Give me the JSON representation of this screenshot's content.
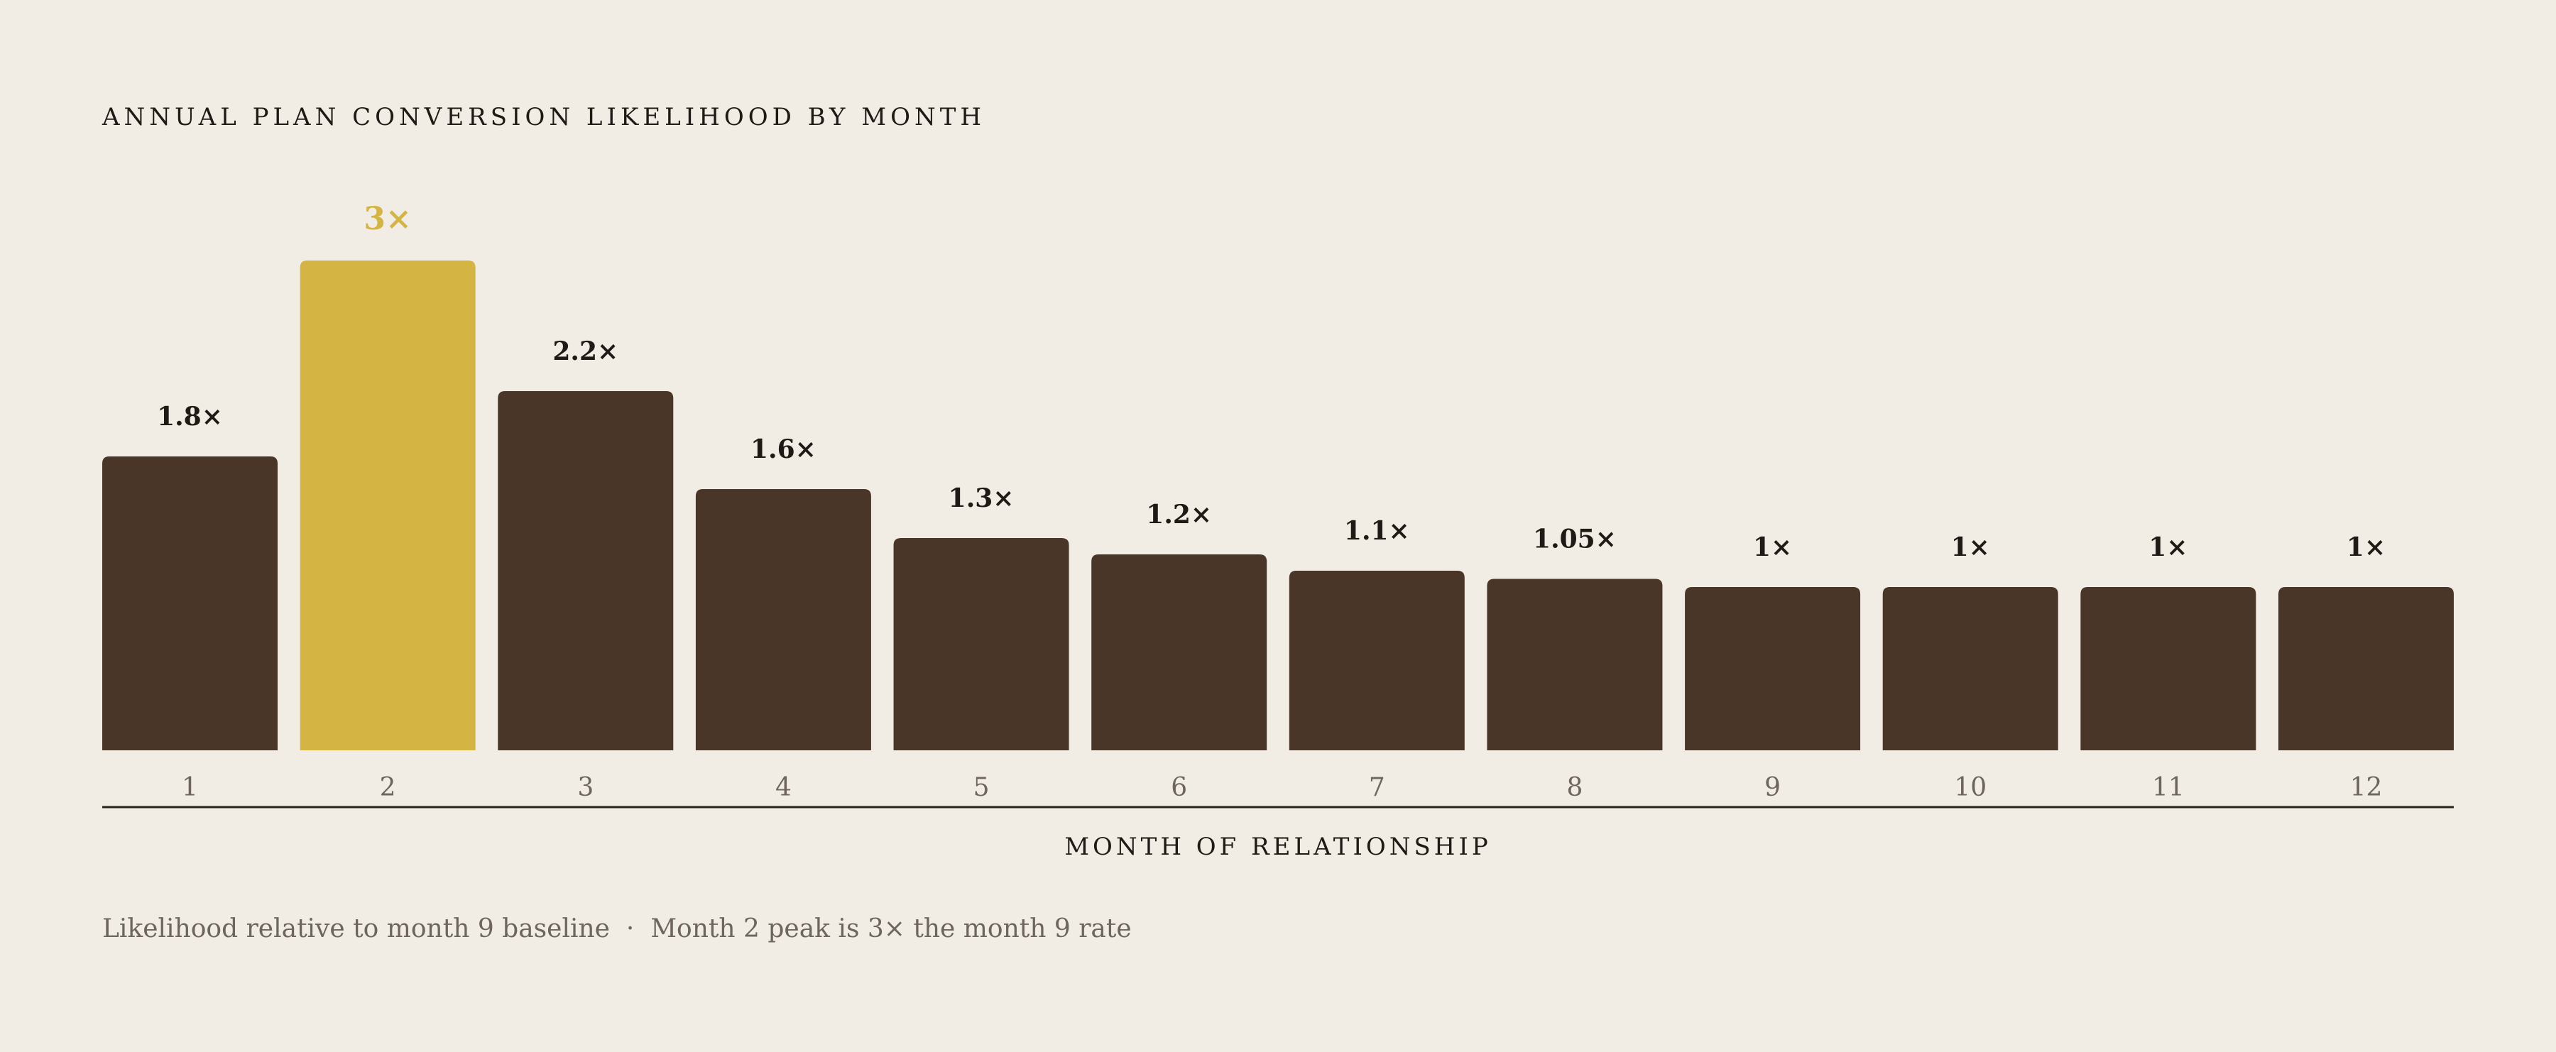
{
  "chart_data": {
    "type": "bar",
    "title": "ANNUAL PLAN CONVERSION LIKELIHOOD BY MONTH",
    "xlabel": "MONTH OF RELATIONSHIP",
    "ylabel": "",
    "caption": "Likelihood relative to month 9 baseline  ·  Month 2 peak is 3× the month 9 rate",
    "categories": [
      "1",
      "2",
      "3",
      "4",
      "5",
      "6",
      "7",
      "8",
      "9",
      "10",
      "11",
      "12"
    ],
    "values": [
      1.8,
      3,
      2.2,
      1.6,
      1.3,
      1.2,
      1.1,
      1.05,
      1,
      1,
      1,
      1
    ],
    "value_labels": [
      "1.8×",
      "3×",
      "2.2×",
      "1.6×",
      "1.3×",
      "1.2×",
      "1.1×",
      "1.05×",
      "1×",
      "1×",
      "1×",
      "1×"
    ],
    "highlight_index": 1,
    "ylim": [
      0,
      3
    ],
    "grid": false,
    "colors": {
      "background": "#f1ece4",
      "bar": "#4a3628",
      "highlight": "#d4b544",
      "text": "#1f1a16",
      "muted": "#6e655d",
      "axis": "#2a241f"
    }
  }
}
